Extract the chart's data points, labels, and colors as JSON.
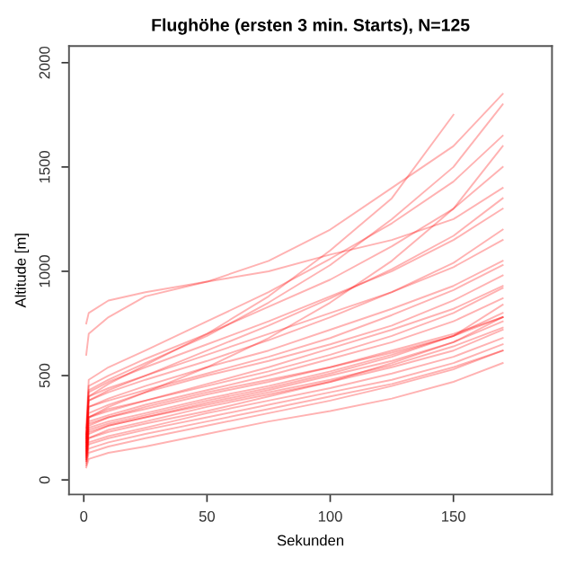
{
  "chart_data": {
    "type": "line",
    "title": "Flughöhe (ersten 3 min. Starts), N=125",
    "xlabel": "Sekunden",
    "ylabel": "Altitude [m]",
    "x": [
      1,
      2,
      10,
      25,
      50,
      75,
      100,
      125,
      150,
      170
    ],
    "xlim": [
      -6,
      190
    ],
    "ylim": [
      -70,
      2080
    ],
    "xticks": [
      0,
      50,
      100,
      150
    ],
    "yticks": [
      0,
      500,
      1000,
      1500,
      2000
    ],
    "grid": false,
    "marker": "none",
    "line_style": "solid",
    "series": [
      {
        "color": "#ff0000",
        "values": [
          60,
          100,
          130,
          160,
          220,
          280,
          330,
          390,
          470,
          560
        ]
      },
      {
        "color": "#ff0000",
        "values": [
          80,
          150,
          180,
          220,
          280,
          340,
          400,
          460,
          540,
          620
        ]
      },
      {
        "color": "#ff0000",
        "values": [
          100,
          180,
          210,
          250,
          320,
          380,
          440,
          510,
          590,
          680
        ]
      },
      {
        "color": "#ff0000",
        "values": [
          120,
          200,
          240,
          280,
          350,
          410,
          470,
          540,
          620,
          720
        ]
      },
      {
        "color": "#ff0000",
        "values": [
          90,
          170,
          200,
          240,
          300,
          360,
          420,
          480,
          560,
          650
        ]
      },
      {
        "color": "#ff0000",
        "values": [
          130,
          220,
          260,
          300,
          370,
          430,
          500,
          570,
          660,
          760
        ]
      },
      {
        "color": "#ff0000",
        "values": [
          110,
          250,
          280,
          320,
          390,
          450,
          520,
          600,
          690,
          800
        ]
      },
      {
        "color": "#ff0000",
        "values": [
          140,
          280,
          310,
          360,
          430,
          500,
          580,
          660,
          760,
          870
        ]
      },
      {
        "color": "#ff0000",
        "values": [
          150,
          300,
          340,
          380,
          450,
          520,
          600,
          690,
          800,
          920
        ]
      },
      {
        "color": "#ff0000",
        "values": [
          100,
          260,
          300,
          350,
          420,
          480,
          540,
          620,
          700,
          780
        ]
      },
      {
        "color": "#ff0000",
        "values": [
          160,
          320,
          360,
          420,
          500,
          570,
          650,
          740,
          860,
          980
        ]
      },
      {
        "color": "#ff0000",
        "values": [
          170,
          350,
          390,
          450,
          540,
          620,
          720,
          820,
          930,
          1050
        ]
      },
      {
        "color": "#ff0000",
        "values": [
          120,
          240,
          270,
          310,
          380,
          440,
          510,
          590,
          690,
          840
        ]
      },
      {
        "color": "#ff0000",
        "values": [
          180,
          400,
          440,
          500,
          600,
          700,
          800,
          900,
          1020,
          1150
        ]
      },
      {
        "color": "#ff0000",
        "values": [
          200,
          420,
          470,
          540,
          650,
          760,
          880,
          1000,
          1150,
          1300
        ]
      },
      {
        "color": "#ff0000",
        "values": [
          150,
          380,
          430,
          500,
          620,
          740,
          870,
          1010,
          1170,
          1350
        ]
      },
      {
        "color": "#ff0000",
        "values": [
          220,
          450,
          500,
          580,
          700,
          830,
          960,
          1120,
          1300,
          1500
        ]
      },
      {
        "color": "#ff0000",
        "values": [
          250,
          480,
          540,
          620,
          760,
          900,
          1060,
          1230,
          1430,
          1650
        ]
      },
      {
        "color": "#ff0000",
        "values": [
          200,
          430,
          480,
          560,
          690,
          850,
          1030,
          1250,
          1500,
          1800
        ]
      },
      {
        "color": "#ff0000",
        "values": [
          180,
          400,
          460,
          550,
          700,
          880,
          1100,
          1350,
          1750,
          null
        ]
      },
      {
        "color": "#ff0000",
        "values": [
          750,
          800,
          860,
          900,
          950,
          1000,
          1080,
          1150,
          1250,
          1400
        ]
      },
      {
        "color": "#ff0000",
        "values": [
          600,
          700,
          780,
          880,
          950,
          1050,
          1200,
          1400,
          1600,
          1850
        ]
      },
      {
        "color": "#ff0000",
        "values": [
          130,
          300,
          350,
          420,
          540,
          680,
          850,
          1050,
          1300,
          1600
        ]
      },
      {
        "color": "#ff0000",
        "values": [
          90,
          200,
          230,
          270,
          330,
          400,
          470,
          560,
          660,
          780
        ]
      },
      {
        "color": "#ff0000",
        "values": [
          110,
          230,
          260,
          300,
          360,
          420,
          480,
          550,
          640,
          730
        ]
      },
      {
        "color": "#ff0000",
        "values": [
          140,
          270,
          300,
          340,
          410,
          470,
          540,
          610,
          690,
          780
        ]
      },
      {
        "color": "#ff0000",
        "values": [
          160,
          300,
          330,
          380,
          460,
          540,
          630,
          720,
          820,
          930
        ]
      },
      {
        "color": "#ff0000",
        "values": [
          70,
          130,
          160,
          200,
          260,
          320,
          380,
          450,
          530,
          620
        ]
      },
      {
        "color": "#ff0000",
        "values": [
          190,
          350,
          380,
          430,
          510,
          590,
          680,
          790,
          910,
          1030
        ]
      },
      {
        "color": "#ff0000",
        "values": [
          210,
          380,
          420,
          480,
          570,
          670,
          780,
          900,
          1040,
          1200
        ]
      }
    ]
  }
}
